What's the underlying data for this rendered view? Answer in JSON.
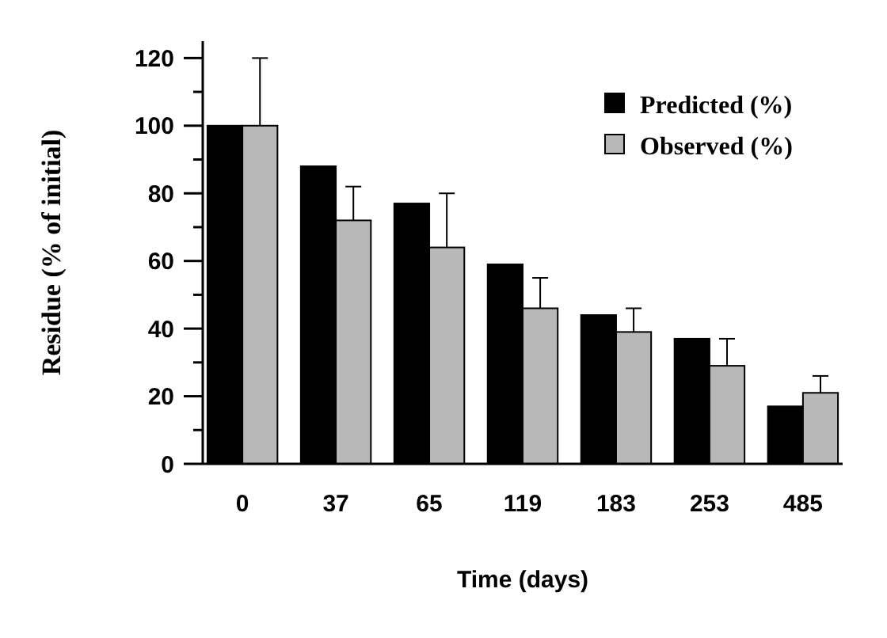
{
  "chart_data": {
    "type": "bar",
    "xlabel": "Time (days)",
    "ylabel": "Residue (% of initial)",
    "categories": [
      "0",
      "37",
      "65",
      "119",
      "183",
      "253",
      "485"
    ],
    "series": [
      {
        "name": "Predicted (%)",
        "color": "#000000",
        "values": [
          100,
          88,
          77,
          59,
          44,
          37,
          17
        ]
      },
      {
        "name": "Observed (%)",
        "color": "#b8b8b8",
        "values": [
          100,
          72,
          64,
          46,
          39,
          29,
          21
        ],
        "errors": [
          [
            100,
            120
          ],
          [
            72,
            82
          ],
          [
            64,
            80
          ],
          [
            46,
            55
          ],
          [
            39,
            46
          ],
          [
            29,
            37
          ],
          [
            21,
            26
          ]
        ]
      }
    ],
    "ylim": [
      0,
      125
    ],
    "yticks": [
      0,
      {
        "value": 10,
        "label": null
      },
      20,
      {
        "value": 30,
        "label": null
      },
      40,
      {
        "value": 50,
        "label": null
      },
      60,
      {
        "value": 70,
        "label": null
      },
      80,
      {
        "value": 90,
        "label": null
      },
      100,
      {
        "value": 110,
        "label": null
      },
      120
    ],
    "legend": "top right",
    "grid": false
  }
}
